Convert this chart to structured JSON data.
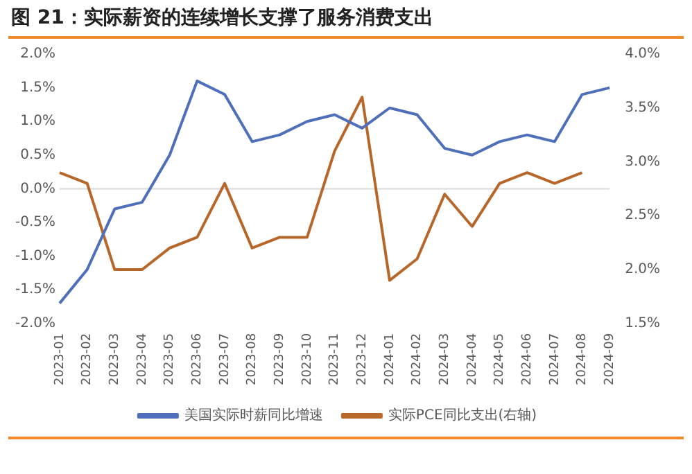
{
  "chart_data": {
    "type": "line",
    "title": "图 21：实际薪资的连续增长支撑了服务消费支出",
    "categories": [
      "2023-01",
      "2023-02",
      "2023-03",
      "2023-04",
      "2023-05",
      "2023-06",
      "2023-07",
      "2023-08",
      "2023-09",
      "2023-10",
      "2023-11",
      "2023-12",
      "2024-01",
      "2024-02",
      "2024-03",
      "2024-04",
      "2024-05",
      "2024-06",
      "2024-07",
      "2024-08",
      "2024-09"
    ],
    "series": [
      {
        "name": "美国实际时薪同比增速",
        "color": "#4f6fba",
        "values": [
          -1.7,
          -1.2,
          -0.3,
          -0.2,
          0.5,
          1.6,
          1.4,
          0.7,
          0.8,
          1.0,
          1.1,
          0.9,
          1.2,
          1.1,
          0.6,
          0.5,
          0.7,
          0.8,
          0.7,
          1.4,
          1.5
        ]
      },
      {
        "name": "实际PCE同比支出(右轴)",
        "color": "#b8672a",
        "axis": "y2",
        "values": [
          2.9,
          2.8,
          2.0,
          2.0,
          2.2,
          2.3,
          2.8,
          2.2,
          2.3,
          2.3,
          3.1,
          3.6,
          1.9,
          2.1,
          2.7,
          2.4,
          2.8,
          2.9,
          2.8,
          2.9,
          null
        ]
      }
    ],
    "ylim": [
      -2,
      2
    ],
    "yticks": [
      {
        "value": -2,
        "label": "-2.0%"
      },
      {
        "value": -1.5,
        "label": "-1.5%"
      },
      {
        "value": -1,
        "label": "-1.0%"
      },
      {
        "value": -0.5,
        "label": "-0.5%"
      },
      {
        "value": 0,
        "label": "0.0%"
      },
      {
        "value": 0.5,
        "label": "0.5%"
      },
      {
        "value": 1,
        "label": "1.0%"
      },
      {
        "value": 1.5,
        "label": "1.5%"
      },
      {
        "value": 2,
        "label": "2.0%"
      }
    ],
    "y2lim": [
      1.5,
      4
    ],
    "y2ticks": [
      {
        "value": 1.5,
        "label": "1.5%"
      },
      {
        "value": 2,
        "label": "2.0%"
      },
      {
        "value": 2.5,
        "label": "2.5%"
      },
      {
        "value": 3,
        "label": "3.0%"
      },
      {
        "value": 3.5,
        "label": "3.5%"
      },
      {
        "value": 4,
        "label": "4.0%"
      }
    ],
    "ref_lines": [
      {
        "axis": "y",
        "value": 0,
        "color": "#d9d9d9"
      }
    ],
    "grid": false,
    "legend": "bottom",
    "marker": "none",
    "line_style": "solid"
  }
}
